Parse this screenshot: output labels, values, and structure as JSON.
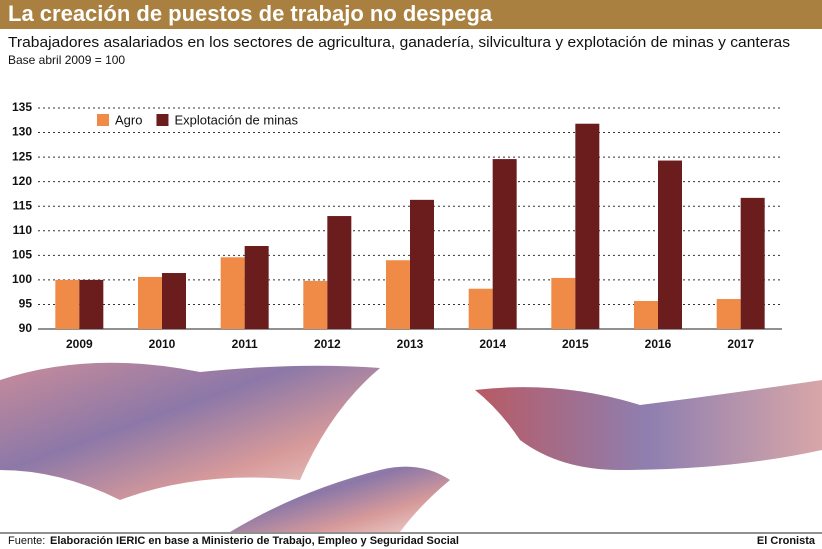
{
  "chart_data": {
    "type": "bar",
    "title": "La creación de puestos de trabajo no despega",
    "subtitle": "Trabajadores asalariados en los sectores de agricultura, ganadería, silvicultura y explotación de minas y canteras",
    "note": "Base abril 2009 = 100",
    "categories": [
      "2009",
      "2010",
      "2011",
      "2012",
      "2013",
      "2014",
      "2015",
      "2016",
      "2017"
    ],
    "series": [
      {
        "name": "Agro",
        "color": "#ef8a47",
        "values": [
          100,
          100.6,
          104.6,
          99.8,
          104,
          98.2,
          100.4,
          95.7,
          96.1
        ]
      },
      {
        "name": "Explotación de minas",
        "color": "#6b1d1d",
        "values": [
          100,
          101.4,
          106.9,
          113,
          116.3,
          124.6,
          131.8,
          124.3,
          116.7
        ]
      }
    ],
    "ylim": [
      90,
      135
    ],
    "yticks": [
      90,
      95,
      100,
      105,
      110,
      115,
      120,
      125,
      130,
      135
    ],
    "grid": true,
    "source_label": "Fuente:",
    "source": "Elaboración IERIC en base a Ministerio de Trabajo, Empleo y Seguridad Social",
    "publisher": "El Cronista"
  }
}
